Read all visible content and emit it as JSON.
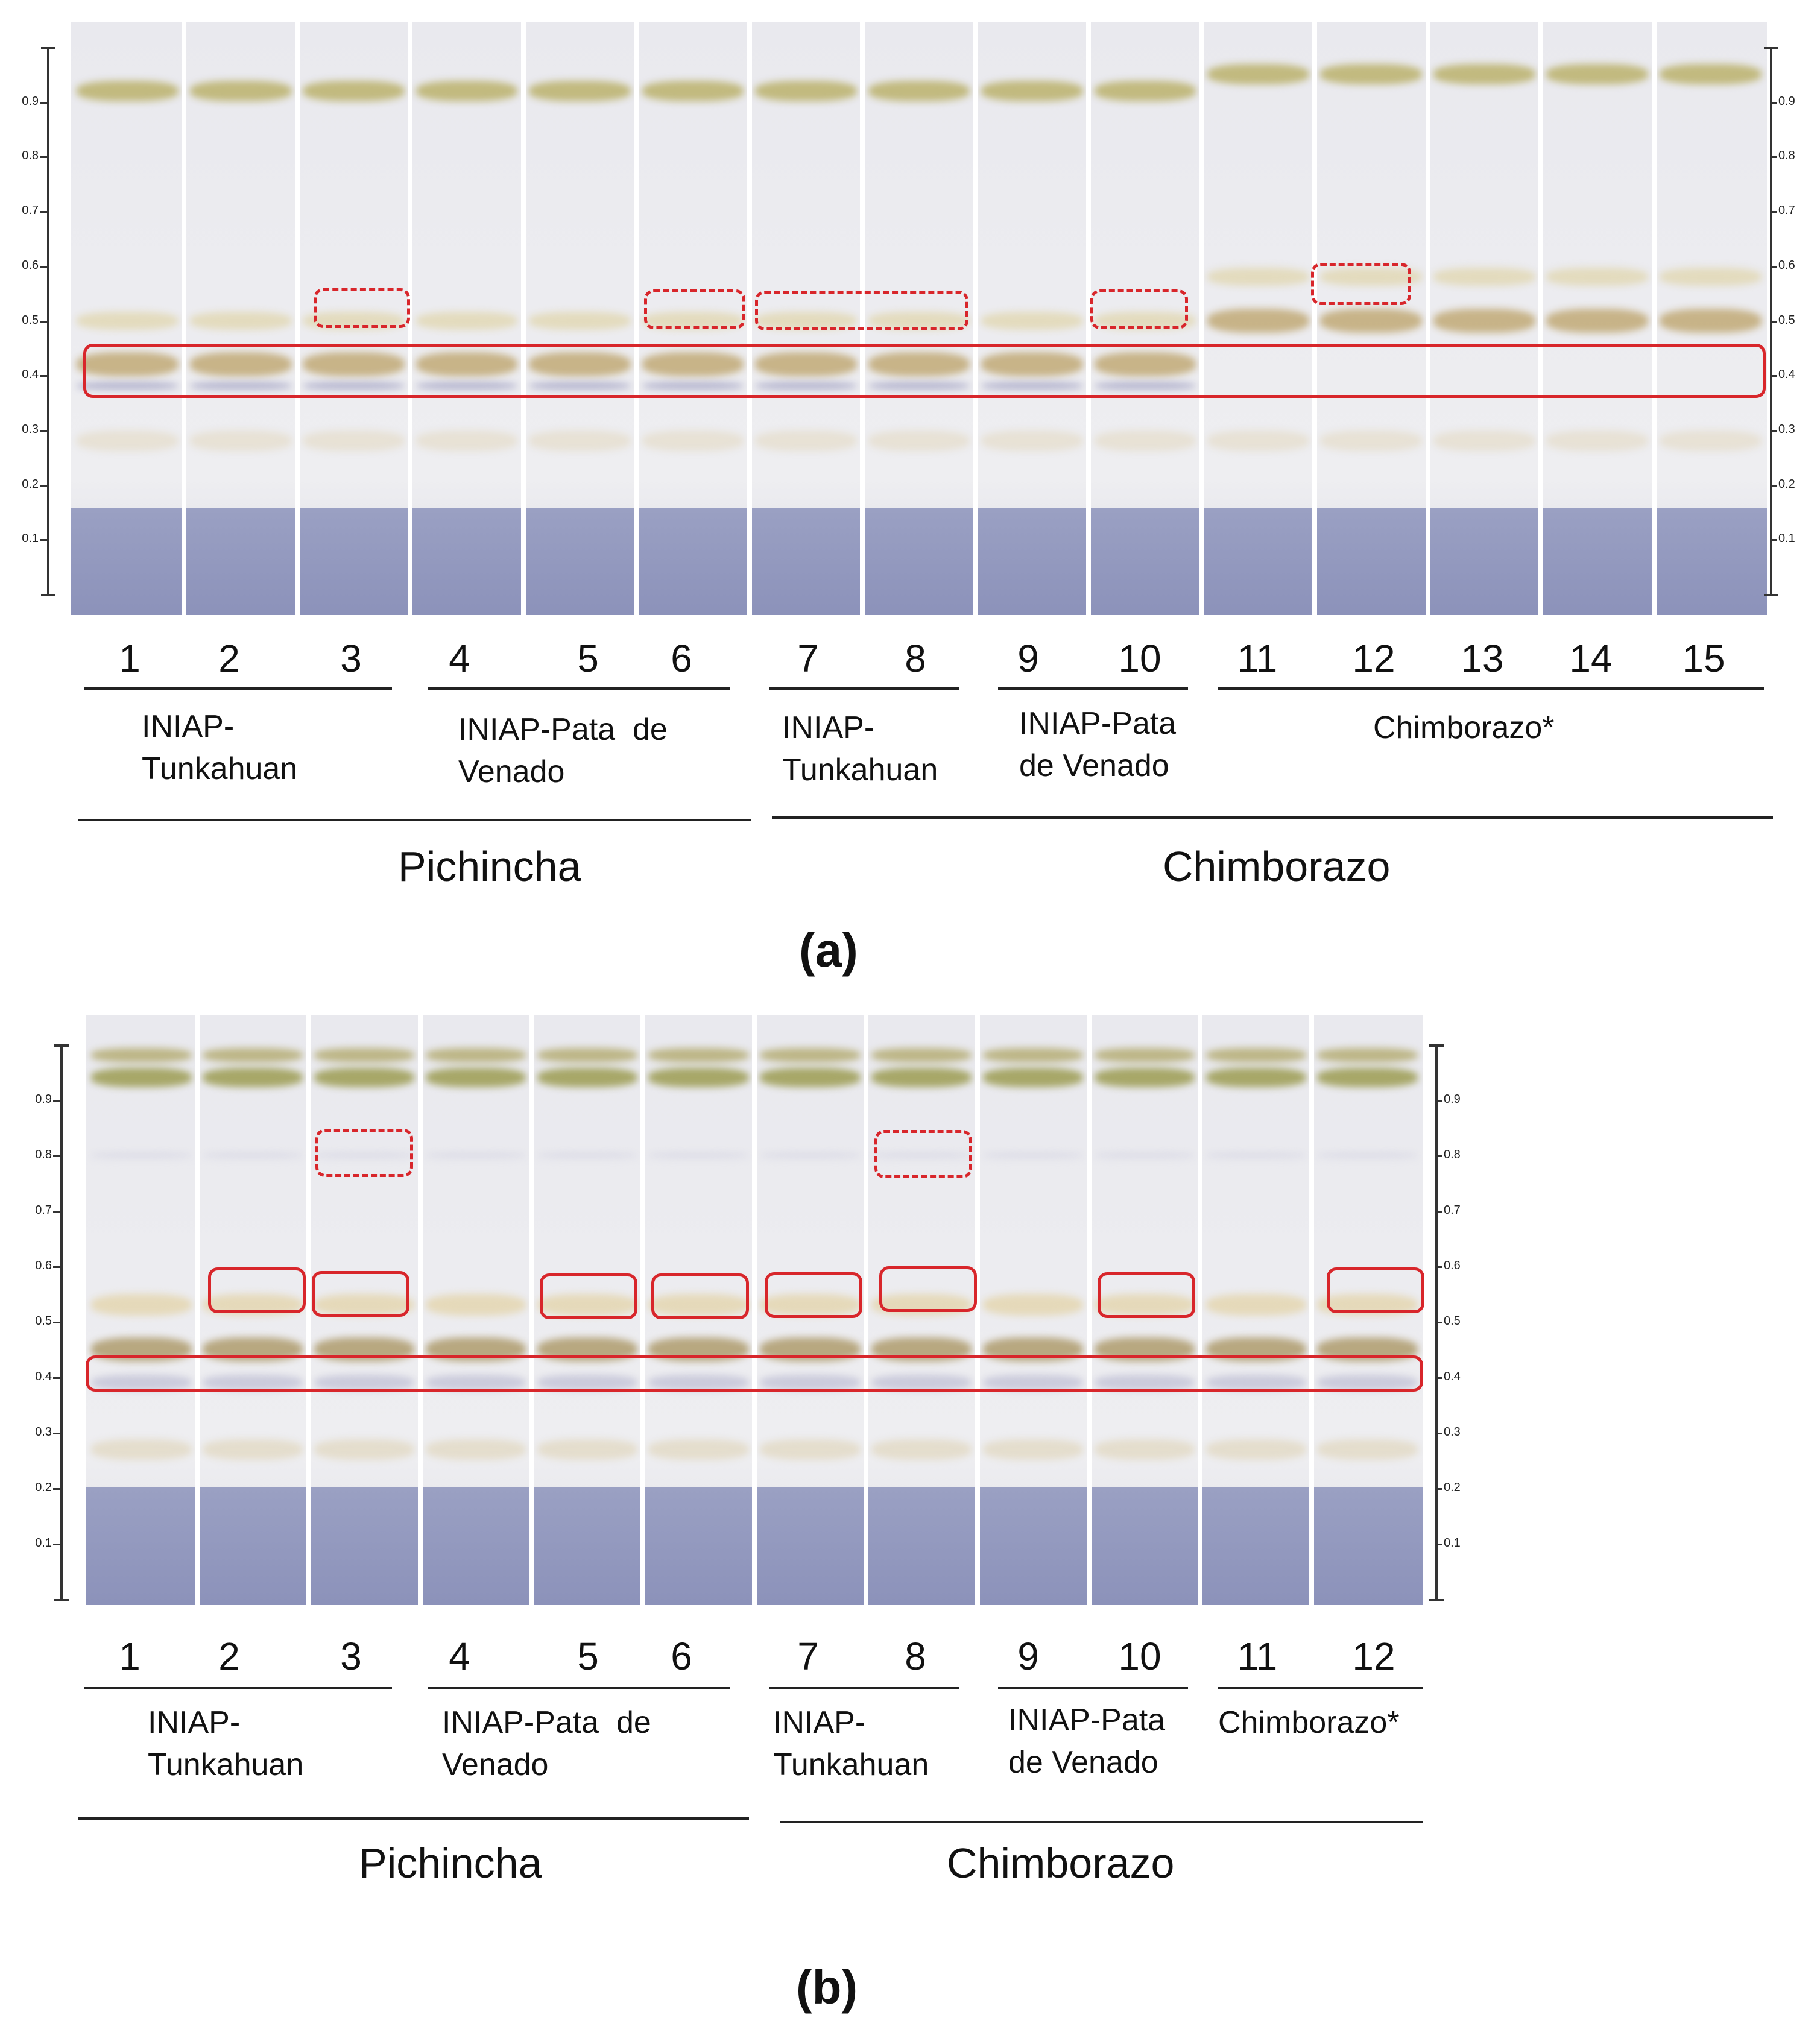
{
  "figure": {
    "panel_a": {
      "caption": "(a)",
      "scale_ticks": [
        "0.9",
        "0.8",
        "0.7",
        "0.6",
        "0.5",
        "0.4",
        "0.3",
        "0.2",
        "0.1"
      ],
      "lane_numbers": [
        "1",
        "2",
        "3",
        "4",
        "5",
        "6",
        "7",
        "8",
        "9",
        "10",
        "11",
        "12",
        "13",
        "14",
        "15"
      ],
      "groups": [
        "INIAP-\nTunkahuan",
        "INIAP-Pata  de\nVenado",
        "INIAP-\nTunkahuan",
        "INIAP-Pata\nde Venado",
        "Chimborazo*"
      ],
      "regions": [
        "Pichincha",
        "Chimborazo"
      ],
      "highlight_rf": 0.4,
      "dashed_highlights_lanes": [
        "3",
        "6",
        "7-8",
        "10",
        "12"
      ]
    },
    "panel_b": {
      "caption": "(b)",
      "scale_ticks": [
        "0.9",
        "0.8",
        "0.7",
        "0.6",
        "0.5",
        "0.4",
        "0.3",
        "0.2",
        "0.1"
      ],
      "lane_numbers": [
        "1",
        "2",
        "3",
        "4",
        "5",
        "6",
        "7",
        "8",
        "9",
        "10",
        "11",
        "12"
      ],
      "groups": [
        "INIAP-\nTunkahuan",
        "INIAP-Pata  de\nVenado",
        "INIAP-\nTunkahuan",
        "INIAP-Pata\nde Venado",
        "Chimborazo*"
      ],
      "regions": [
        "Pichincha",
        "Chimborazo"
      ],
      "highlight_rf": 0.4,
      "solid_highlight_lanes": [
        "2",
        "3",
        "5",
        "6",
        "7",
        "8",
        "10",
        "12"
      ],
      "dashed_highlights_lanes": [
        "3",
        "8"
      ]
    }
  }
}
